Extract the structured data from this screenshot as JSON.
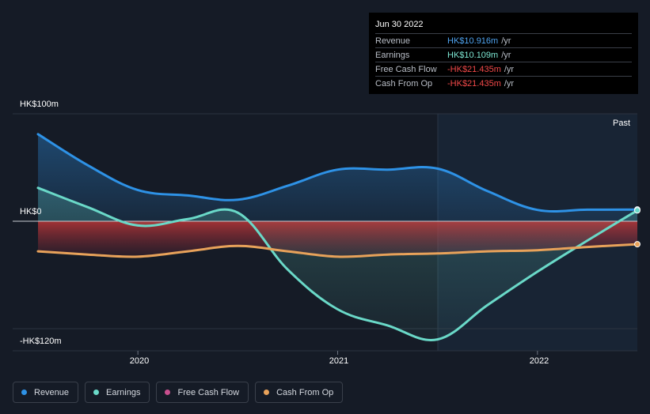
{
  "tooltip": {
    "date": "Jun 30 2022",
    "rows": [
      {
        "label": "Revenue",
        "value": "HK$10.916m",
        "unit": "/yr",
        "color": "#4fa3ef"
      },
      {
        "label": "Earnings",
        "value": "HK$10.109m",
        "unit": "/yr",
        "color": "#7ee8d4"
      },
      {
        "label": "Free Cash Flow",
        "value": "-HK$21.435m",
        "unit": "/yr",
        "color": "#f24949"
      },
      {
        "label": "Cash From Op",
        "value": "-HK$21.435m",
        "unit": "/yr",
        "color": "#f24949"
      }
    ]
  },
  "past_label": "Past",
  "legend": [
    {
      "label": "Revenue",
      "color": "#2e92e6"
    },
    {
      "label": "Earnings",
      "color": "#6ad9c8"
    },
    {
      "label": "Free Cash Flow",
      "color": "#c84f8e"
    },
    {
      "label": "Cash From Op",
      "color": "#e8a25a"
    }
  ],
  "chart_data": {
    "type": "line",
    "ylim": [
      -120,
      100
    ],
    "y_tick_labels": [
      "HK$100m",
      "HK$0",
      "-HK$120m"
    ],
    "y_ticks": [
      100,
      0,
      -120
    ],
    "x_tick_labels": [
      "2020",
      "2021",
      "2022"
    ],
    "x_ticks": [
      2020.0,
      2021.0,
      2022.0
    ],
    "xlim": [
      2019.5,
      2022.5
    ],
    "series": [
      {
        "name": "Revenue",
        "color": "#2e92e6",
        "x": [
          2019.5,
          2019.75,
          2020.0,
          2020.25,
          2020.5,
          2020.75,
          2021.0,
          2021.25,
          2021.5,
          2021.75,
          2022.0,
          2022.25,
          2022.5
        ],
        "y": [
          81,
          52,
          29,
          24,
          20,
          33,
          48,
          48,
          49,
          28,
          10.5,
          10.7,
          10.9
        ]
      },
      {
        "name": "Earnings",
        "color": "#6ad9c8",
        "x": [
          2019.5,
          2019.75,
          2020.0,
          2020.25,
          2020.5,
          2020.75,
          2021.0,
          2021.25,
          2021.5,
          2021.75,
          2022.0,
          2022.25,
          2022.5
        ],
        "y": [
          31,
          13,
          -4,
          2,
          8,
          -45,
          -82,
          -97,
          -110,
          -78,
          -47,
          -18,
          10.1
        ]
      },
      {
        "name": "Free Cash Flow",
        "color": "#c84f8e",
        "x": [],
        "y": []
      },
      {
        "name": "Cash From Op",
        "color": "#e8a25a",
        "x": [
          2019.5,
          2019.75,
          2020.0,
          2020.25,
          2020.5,
          2020.75,
          2021.0,
          2021.25,
          2021.5,
          2021.75,
          2022.0,
          2022.25,
          2022.5
        ],
        "y": [
          -28,
          -31,
          -33,
          -28,
          -23,
          -28,
          -33,
          -31,
          -30,
          -28,
          -27,
          -24,
          -21.4
        ]
      }
    ]
  }
}
